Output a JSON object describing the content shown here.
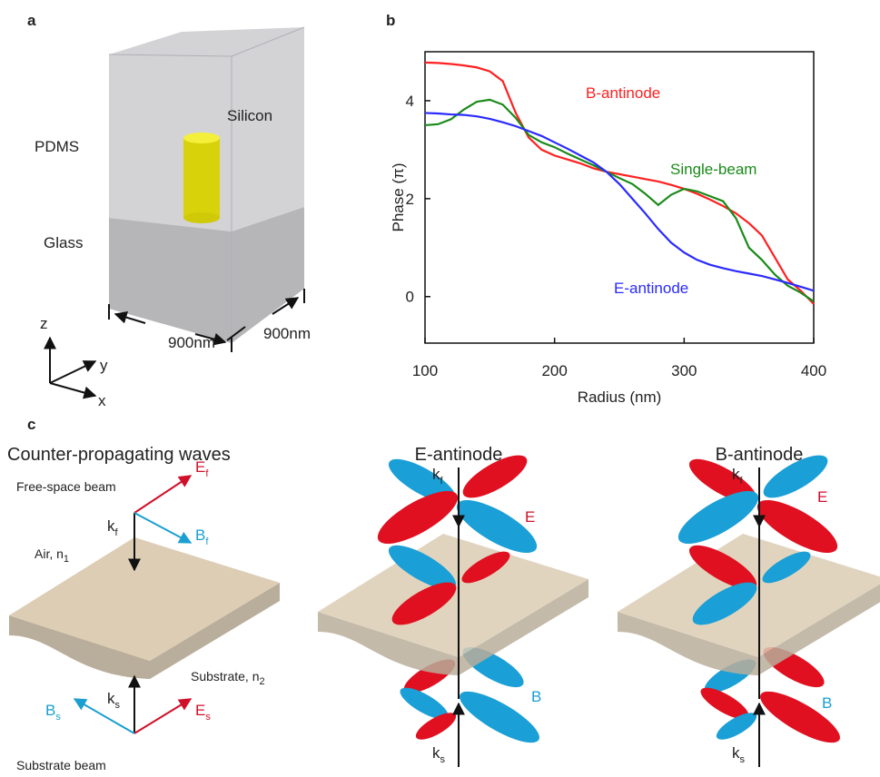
{
  "panel_a": {
    "label": "a",
    "silicon": "Silicon",
    "pdms": "PDMS",
    "glass": "Glass",
    "width_x": "900nm",
    "width_y": "900nm",
    "axis_z": "z",
    "axis_y": "y",
    "axis_x": "x"
  },
  "chart_data": {
    "type": "line",
    "label": "b",
    "x_label": "Radius (nm)",
    "y_label": "Phase (π)",
    "x": [
      100,
      110,
      120,
      130,
      140,
      150,
      160,
      170,
      180,
      190,
      200,
      210,
      220,
      230,
      240,
      250,
      260,
      270,
      280,
      290,
      300,
      310,
      320,
      330,
      340,
      350,
      360,
      370,
      380,
      390,
      400
    ],
    "series": [
      {
        "name": "B-antinode",
        "color": "#ff2020",
        "values": [
          4.78,
          4.77,
          4.75,
          4.72,
          4.68,
          4.6,
          4.4,
          3.75,
          3.25,
          3.0,
          2.88,
          2.8,
          2.72,
          2.62,
          2.55,
          2.5,
          2.45,
          2.4,
          2.35,
          2.28,
          2.2,
          2.1,
          1.98,
          1.85,
          1.7,
          1.5,
          1.25,
          0.8,
          0.35,
          0.12,
          -0.15
        ]
      },
      {
        "name": "Single-beam",
        "color": "#1a8a1a",
        "values": [
          3.5,
          3.52,
          3.62,
          3.82,
          3.98,
          4.02,
          3.92,
          3.65,
          3.3,
          3.15,
          3.05,
          2.92,
          2.8,
          2.68,
          2.55,
          2.42,
          2.3,
          2.1,
          1.87,
          2.08,
          2.2,
          2.15,
          2.05,
          1.95,
          1.6,
          1.0,
          0.75,
          0.45,
          0.22,
          0.08,
          -0.1
        ]
      },
      {
        "name": "E-antinode",
        "color": "#2a2aff",
        "values": [
          3.75,
          3.74,
          3.72,
          3.71,
          3.68,
          3.63,
          3.56,
          3.48,
          3.38,
          3.28,
          3.15,
          3.02,
          2.88,
          2.74,
          2.55,
          2.3,
          2.0,
          1.7,
          1.38,
          1.1,
          0.9,
          0.75,
          0.65,
          0.58,
          0.52,
          0.47,
          0.42,
          0.35,
          0.28,
          0.2,
          0.12
        ]
      }
    ],
    "xlim": [
      100,
      400
    ],
    "xticks": [
      100,
      200,
      300,
      400
    ],
    "ylim": [
      -0.95,
      5
    ],
    "yticks": [
      0,
      2,
      4
    ],
    "grid": false
  },
  "panel_c": {
    "label": "c",
    "left": {
      "title": "Counter-propagating waves",
      "free_space": "Free-space beam",
      "ef": {
        "main": "E",
        "sub": "f"
      },
      "bf": {
        "main": "B",
        "sub": "f"
      },
      "kf": {
        "main": "k",
        "sub": "f"
      },
      "air": {
        "main": "Air, n",
        "sub": "1"
      },
      "substrate": {
        "main": "Substrate, n",
        "sub": "2"
      },
      "ks": {
        "main": "k",
        "sub": "s"
      },
      "bs": {
        "main": "B",
        "sub": "s"
      },
      "es": {
        "main": "E",
        "sub": "s"
      },
      "substrate_beam": "Substrate beam"
    },
    "middle": {
      "title": "E-antinode",
      "kf": {
        "main": "k",
        "sub": "f"
      },
      "e": "E",
      "b": "B",
      "ks": {
        "main": "k",
        "sub": "s"
      }
    },
    "right": {
      "title": "B-antinode",
      "kf": {
        "main": "k",
        "sub": "f"
      },
      "e": "E",
      "b": "B",
      "ks": {
        "main": "k",
        "sub": "s"
      }
    }
  }
}
